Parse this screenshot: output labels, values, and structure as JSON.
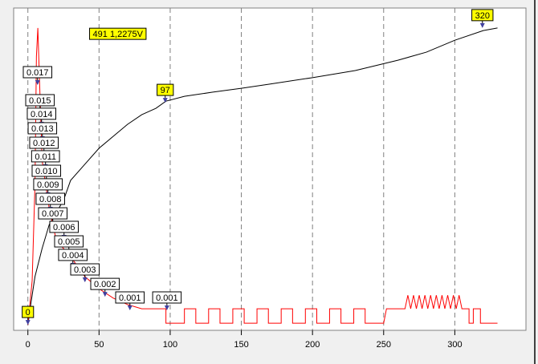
{
  "chart_data": {
    "type": "line",
    "xlim": [
      -10,
      350
    ],
    "ylim": [
      0,
      100
    ],
    "xticks": [
      0,
      50,
      100,
      150,
      200,
      250,
      300
    ],
    "grid": true,
    "series": [
      {
        "color": "#000000",
        "x": [
          0,
          2,
          5,
          10,
          15,
          20,
          25,
          30,
          40,
          50,
          60,
          70,
          80,
          90,
          97,
          110,
          130,
          150,
          170,
          200,
          230,
          260,
          280,
          300,
          320,
          330
        ],
        "values": [
          1.7,
          8,
          16.7,
          25.4,
          32.8,
          36.6,
          40.3,
          46.5,
          51.5,
          56.5,
          60.2,
          63.9,
          66.9,
          68.9,
          71.1,
          72.6,
          73.9,
          75.1,
          76.4,
          78.4,
          80.6,
          83.8,
          86.3,
          90,
          93,
          93.8
        ]
      },
      {
        "color": "#ff0000",
        "x": [
          0,
          3,
          5,
          6,
          7,
          8,
          10,
          15,
          20,
          30,
          40,
          50,
          60,
          70,
          80,
          97,
          97,
          110,
          110,
          118,
          118,
          127,
          127,
          135,
          135,
          144,
          144,
          152,
          152,
          161,
          161,
          169,
          169,
          178,
          178,
          186,
          186,
          195,
          195,
          203,
          203,
          212,
          212,
          220,
          220,
          229,
          229,
          237,
          237,
          250,
          252,
          265,
          267,
          269,
          271,
          273,
          275,
          277,
          279,
          281,
          283,
          285,
          287,
          289,
          291,
          293,
          295,
          297,
          299,
          301,
          303,
          305,
          310,
          310,
          313,
          313,
          318,
          318,
          330
        ],
        "values": [
          1.7,
          15.4,
          45.3,
          85,
          93.8,
          80,
          52.7,
          37.8,
          27.9,
          22.9,
          16.7,
          12.9,
          10,
          8,
          6.7,
          6.7,
          2.2,
          2.2,
          6.7,
          6.7,
          2.2,
          2.2,
          6.7,
          6.7,
          2.2,
          2.2,
          6.7,
          6.7,
          2.2,
          2.2,
          6.7,
          6.7,
          2.2,
          2.2,
          6.7,
          6.7,
          2.2,
          2.2,
          6.7,
          6.7,
          2.2,
          2.2,
          6.7,
          6.7,
          2.2,
          2.2,
          6.7,
          6.7,
          2.2,
          2.2,
          6.7,
          6.7,
          10.9,
          6.7,
          10.9,
          6.7,
          10.9,
          6.7,
          10.9,
          6.7,
          10.9,
          6.7,
          10.9,
          6.7,
          10.9,
          6.7,
          10.9,
          6.7,
          10.9,
          6.7,
          10.9,
          6.7,
          6.7,
          2.2,
          2.2,
          6.7,
          6.7,
          2.2,
          2.2
        ]
      }
    ],
    "annotations": [
      {
        "text": "491 1,2275V",
        "x": 63.2,
        "y": 92,
        "color": "#ffff00",
        "arrow": false
      },
      {
        "text": "0",
        "x": 0,
        "y": 5.7,
        "color": "#ffff00",
        "arrow": true
      },
      {
        "text": "97",
        "x": 96.5,
        "y": 74.6,
        "color": "#ffff00",
        "arrow": true
      },
      {
        "text": "320",
        "x": 319.4,
        "y": 97.8,
        "color": "#ffff00",
        "arrow": true
      },
      {
        "text": "0.017",
        "x": 6.8,
        "y": 80.1,
        "color": "#ffffff",
        "arrow": true
      },
      {
        "text": "0.015",
        "x": 8.5,
        "y": 71.4,
        "color": "#ffffff",
        "arrow": true
      },
      {
        "text": "0.014",
        "x": 9.6,
        "y": 67.2,
        "color": "#ffffff",
        "arrow": true
      },
      {
        "text": "0.013",
        "x": 10.2,
        "y": 62.7,
        "color": "#ffffff",
        "arrow": true
      },
      {
        "text": "0.012",
        "x": 11.3,
        "y": 58.2,
        "color": "#ffffff",
        "arrow": true
      },
      {
        "text": "0.011",
        "x": 12.4,
        "y": 54,
        "color": "#ffffff",
        "arrow": true
      },
      {
        "text": "0.010",
        "x": 13,
        "y": 49.5,
        "color": "#ffffff",
        "arrow": true
      },
      {
        "text": "0.009",
        "x": 14.1,
        "y": 45.3,
        "color": "#ffffff",
        "arrow": true
      },
      {
        "text": "0.008",
        "x": 15.8,
        "y": 40.8,
        "color": "#ffffff",
        "arrow": true
      },
      {
        "text": "0.007",
        "x": 17.5,
        "y": 36.3,
        "color": "#ffffff",
        "arrow": true
      },
      {
        "text": "0.006",
        "x": 25.4,
        "y": 32.1,
        "color": "#ffffff",
        "arrow": true
      },
      {
        "text": "0.005",
        "x": 28.8,
        "y": 27.6,
        "color": "#ffffff",
        "arrow": true
      },
      {
        "text": "0.004",
        "x": 31.6,
        "y": 23.4,
        "color": "#ffffff",
        "arrow": true
      },
      {
        "text": "0.003",
        "x": 40.1,
        "y": 18.9,
        "color": "#ffffff",
        "arrow": true
      },
      {
        "text": "0.002",
        "x": 54.2,
        "y": 14.4,
        "color": "#ffffff",
        "arrow": true
      },
      {
        "text": "0.001",
        "x": 71.7,
        "y": 10.2,
        "color": "#ffffff",
        "arrow": true
      },
      {
        "text": "0.001",
        "x": 97.7,
        "y": 10.2,
        "color": "#ffffff",
        "arrow": true
      }
    ]
  }
}
